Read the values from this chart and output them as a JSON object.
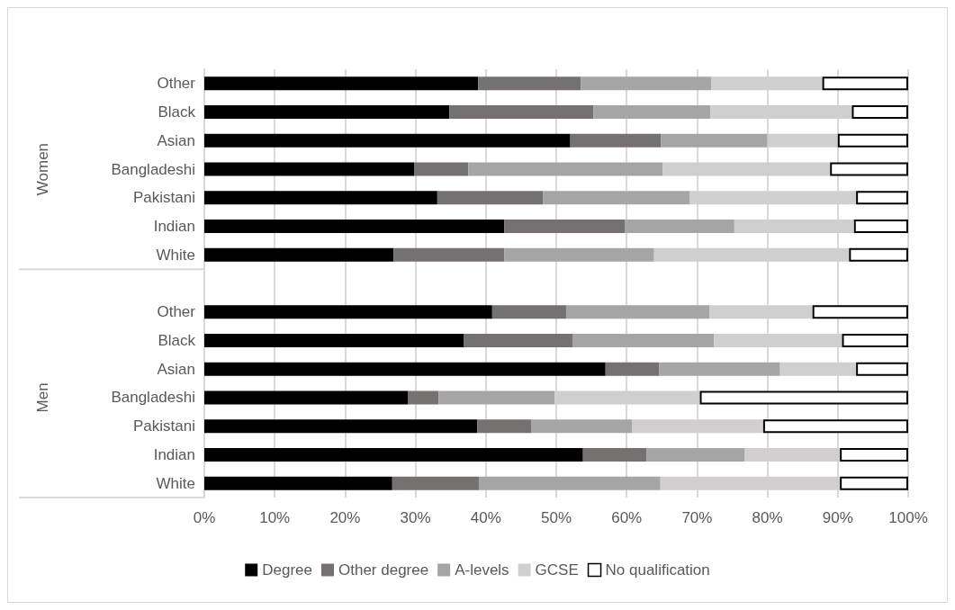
{
  "chart_data": {
    "type": "bar",
    "orientation": "horizontal",
    "stacked": true,
    "categories": [
      "Other",
      "Black",
      "Asian",
      "Bangladeshi",
      "Pakistani",
      "Indian",
      "White",
      null,
      "Other",
      "Black",
      "Asian",
      "Bangladeshi",
      "Pakistani",
      "Indian",
      "White"
    ],
    "annotations": [
      "Women",
      "Men"
    ],
    "series": [
      {
        "name": "Degree",
        "color": "#000000",
        "values": [
          38.9,
          34.8,
          52.0,
          29.8,
          33.1,
          42.6,
          26.9,
          null,
          40.9,
          36.9,
          57.0,
          28.9,
          38.8,
          53.8,
          26.7
        ]
      },
      {
        "name": "Other degree",
        "color": "#767171",
        "values": [
          14.6,
          20.5,
          12.9,
          7.7,
          15.0,
          17.2,
          15.7,
          null,
          10.5,
          15.4,
          7.6,
          4.4,
          7.7,
          9.0,
          12.3
        ]
      },
      {
        "name": "A-levels",
        "color": "#a5a5a5",
        "values": [
          18.5,
          16.6,
          15.1,
          27.6,
          20.9,
          15.5,
          21.3,
          null,
          20.4,
          20.1,
          17.2,
          16.5,
          14.3,
          14.0,
          25.8
        ]
      },
      {
        "name": "GCSE",
        "color": "#d0cece",
        "values": [
          15.8,
          20.1,
          10.0,
          23.8,
          23.6,
          17.0,
          27.7,
          null,
          14.6,
          18.2,
          10.8,
          20.6,
          18.6,
          13.5,
          25.5
        ]
      },
      {
        "name": "No qualification",
        "color": "#ffffff",
        "values": [
          12.2,
          8.0,
          10.0,
          11.1,
          7.4,
          7.7,
          8.4,
          null,
          13.6,
          9.4,
          7.4,
          29.6,
          20.6,
          9.7,
          9.7
        ]
      }
    ],
    "xlim": [
      0,
      100
    ],
    "xticks": [
      {
        "value": 0,
        "label": "0%"
      },
      {
        "value": 10,
        "label": "10%"
      },
      {
        "value": 20,
        "label": "20%"
      },
      {
        "value": 30,
        "label": "30%"
      },
      {
        "value": 40,
        "label": "40%"
      },
      {
        "value": 50,
        "label": "50%"
      },
      {
        "value": 60,
        "label": "60%"
      },
      {
        "value": 70,
        "label": "70%"
      },
      {
        "value": 80,
        "label": "80%"
      },
      {
        "value": 90,
        "label": "90%"
      },
      {
        "value": 100,
        "label": "100%"
      }
    ],
    "grid": "x",
    "legend": "bottom"
  }
}
